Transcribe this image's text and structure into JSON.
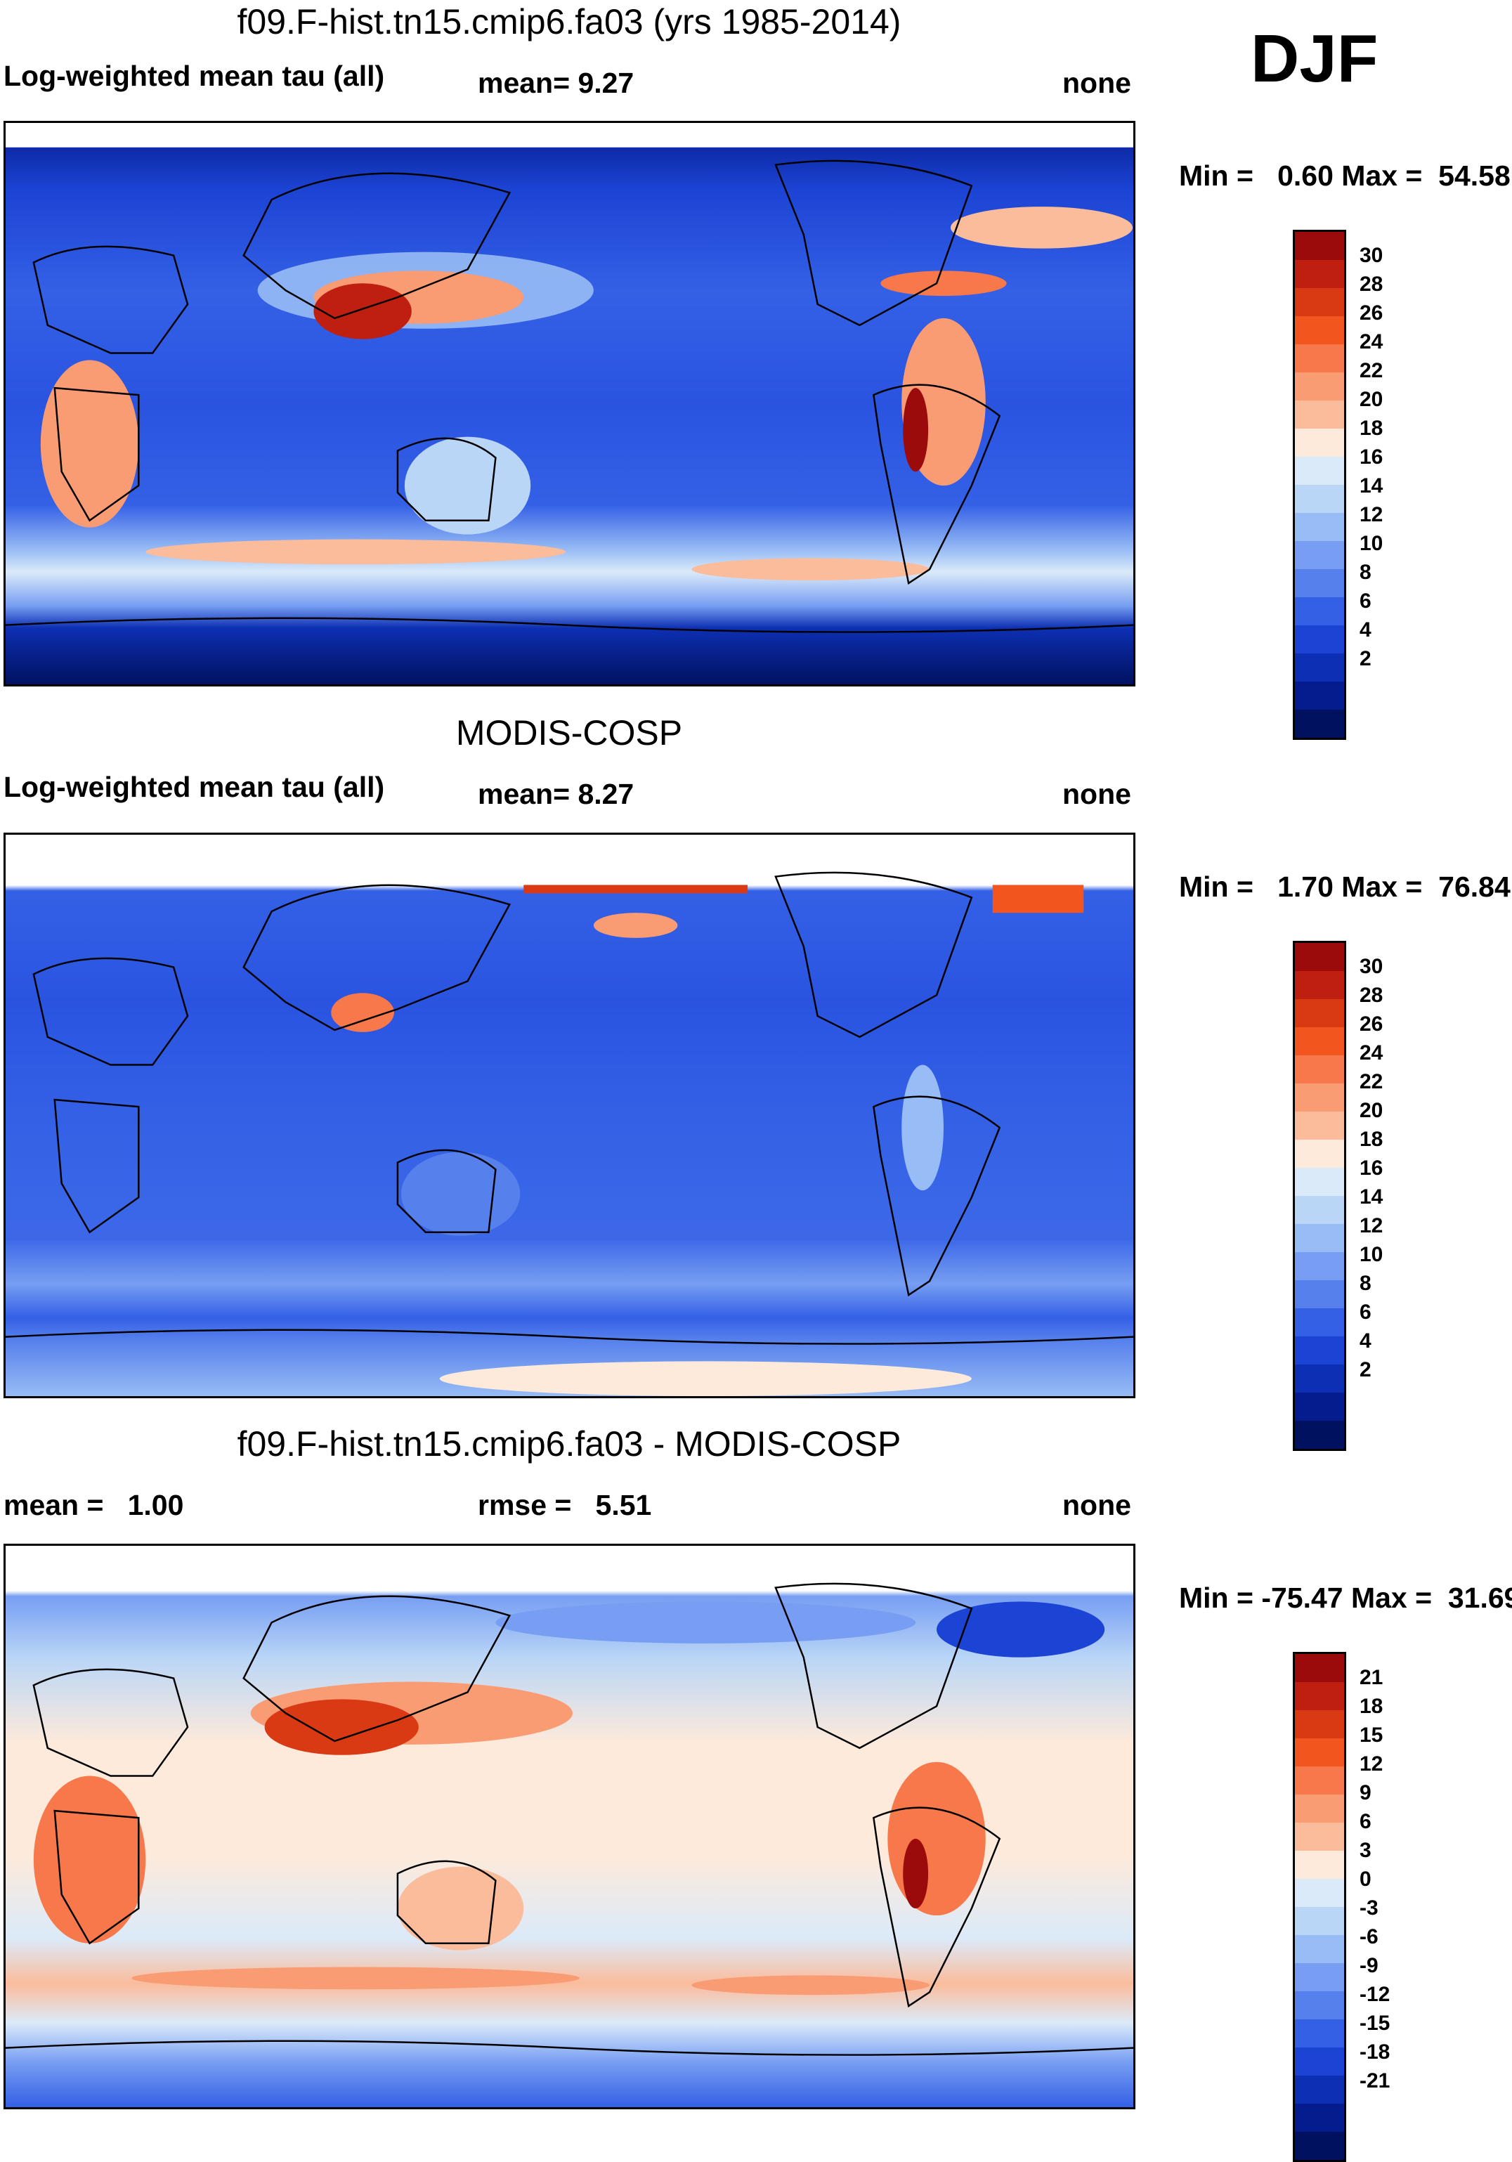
{
  "season": "DJF",
  "panels": [
    {
      "title": "f09.F-hist.tn15.cmip6.fa03 (yrs 1985-2014)",
      "left_label": "Log-weighted mean tau (all)",
      "center_label": "mean=   9.27",
      "right_label": "none",
      "minmax": "Min =   0.60 Max =  54.58",
      "colorbar": {
        "colors": [
          "#9b0b0b",
          "#bf1f10",
          "#d93a14",
          "#f2561e",
          "#f7784a",
          "#f99b73",
          "#fbbc9c",
          "#fdeadb",
          "#dbeaf9",
          "#bad6f7",
          "#98bcf5",
          "#779ef2",
          "#5680ec",
          "#3460e6",
          "#1c44d4",
          "#0d2fb3",
          "#051c8f",
          "#00115f"
        ],
        "labels": [
          "30",
          "28",
          "26",
          "24",
          "22",
          "20",
          "18",
          "16",
          "14",
          "12",
          "10",
          "8",
          "6",
          "4",
          "2"
        ]
      }
    },
    {
      "title": "MODIS-COSP",
      "left_label": "Log-weighted mean tau (all)",
      "center_label": "mean=   8.27",
      "right_label": "none",
      "minmax": "Min =   1.70 Max =  76.84",
      "colorbar": {
        "colors": [
          "#9b0b0b",
          "#bf1f10",
          "#d93a14",
          "#f2561e",
          "#f7784a",
          "#f99b73",
          "#fbbc9c",
          "#fdeadb",
          "#dbeaf9",
          "#bad6f7",
          "#98bcf5",
          "#779ef2",
          "#5680ec",
          "#3460e6",
          "#1c44d4",
          "#0d2fb3",
          "#051c8f",
          "#00115f"
        ],
        "labels": [
          "30",
          "28",
          "26",
          "24",
          "22",
          "20",
          "18",
          "16",
          "14",
          "12",
          "10",
          "8",
          "6",
          "4",
          "2"
        ]
      }
    },
    {
      "title": "f09.F-hist.tn15.cmip6.fa03 - MODIS-COSP",
      "left_label": "mean =   1.00",
      "center_label": "rmse =   5.51",
      "right_label": "none",
      "minmax": "Min = -75.47 Max =  31.69",
      "colorbar": {
        "colors": [
          "#9b0b0b",
          "#bf1f10",
          "#d93a14",
          "#f2561e",
          "#f7784a",
          "#f99b73",
          "#fbbc9c",
          "#fdeadb",
          "#dbeaf9",
          "#bad6f7",
          "#98bcf5",
          "#779ef2",
          "#5680ec",
          "#3460e6",
          "#1c44d4",
          "#0d2fb3",
          "#051c8f",
          "#00115f"
        ],
        "labels": [
          "21",
          "18",
          "15",
          "12",
          "9",
          "6",
          "3",
          "0",
          "-3",
          "-6",
          "-9",
          "-12",
          "-15",
          "-18",
          "-21"
        ]
      }
    }
  ]
}
